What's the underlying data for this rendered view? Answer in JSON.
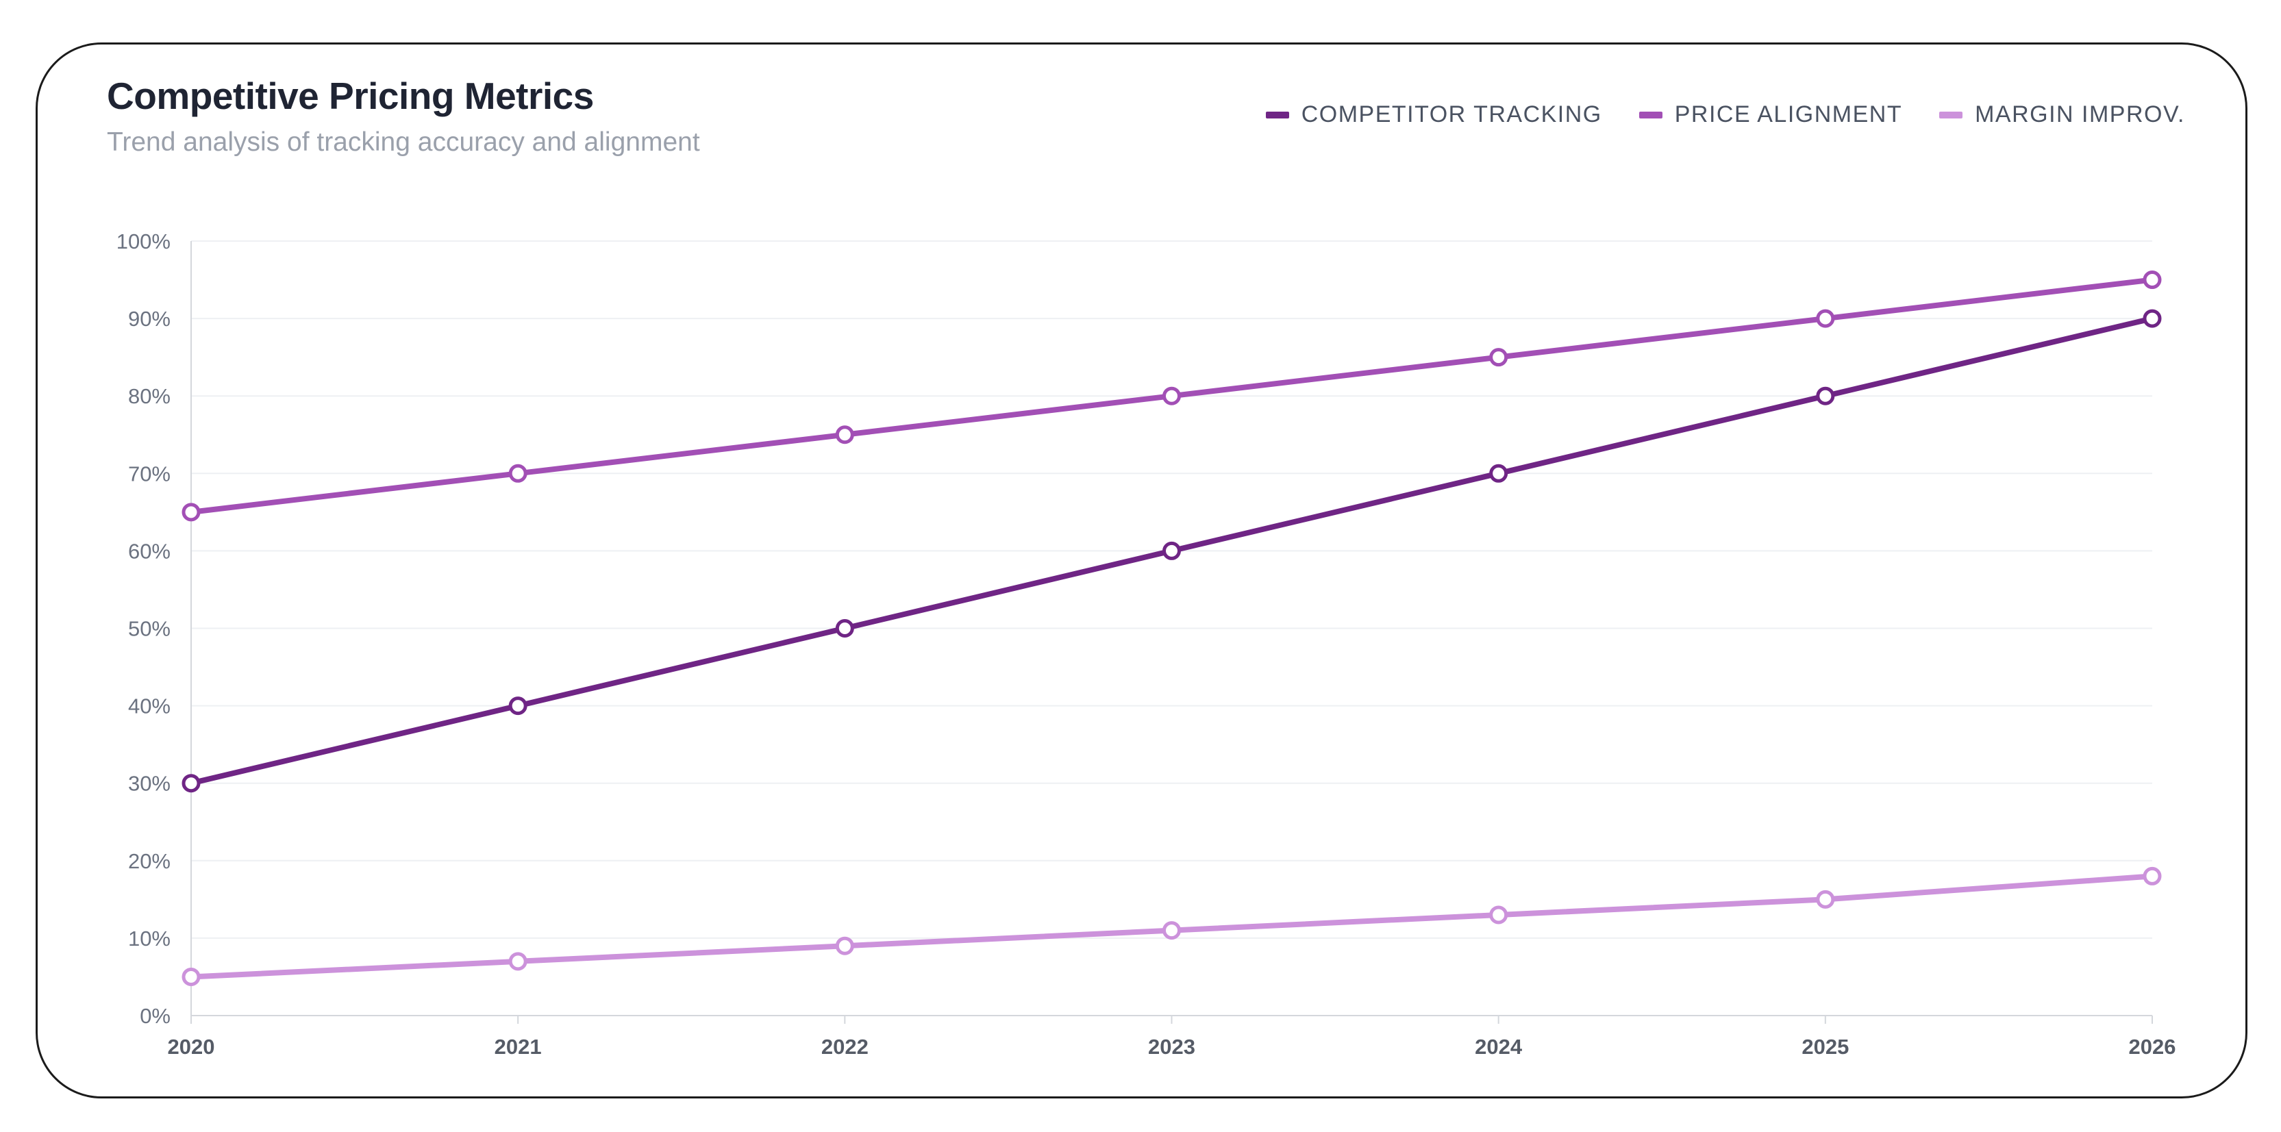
{
  "card": {
    "title": "Competitive Pricing Metrics",
    "subtitle": "Trend analysis of tracking accuracy and alignment"
  },
  "colors": {
    "competitor_tracking": "#6f2585",
    "price_alignment": "#a24fb5",
    "margin_improv": "#cc92db",
    "grid": "#eef0f3",
    "axis": "#d4d7dc",
    "tick_label": "#6b7280",
    "x_tick_label": "#555b66"
  },
  "chart_data": {
    "type": "line",
    "title": "Competitive Pricing Metrics",
    "subtitle": "Trend analysis of tracking accuracy and alignment",
    "xlabel": "",
    "ylabel": "",
    "x": [
      "2020",
      "2021",
      "2022",
      "2023",
      "2024",
      "2025",
      "2026"
    ],
    "ylim": [
      0,
      100
    ],
    "yticks": [
      "0%",
      "10%",
      "20%",
      "30%",
      "40%",
      "50%",
      "60%",
      "70%",
      "80%",
      "90%",
      "100%"
    ],
    "grid": true,
    "legend_position": "top-right",
    "series": [
      {
        "name": "COMPETITOR TRACKING",
        "color_key": "competitor_tracking",
        "values": [
          30,
          40,
          50,
          60,
          70,
          80,
          90
        ]
      },
      {
        "name": "PRICE ALIGNMENT",
        "color_key": "price_alignment",
        "values": [
          65,
          70,
          75,
          80,
          85,
          90,
          95
        ]
      },
      {
        "name": "MARGIN IMPROV.",
        "color_key": "margin_improv",
        "values": [
          5,
          7,
          9,
          11,
          13,
          15,
          18
        ]
      }
    ]
  }
}
